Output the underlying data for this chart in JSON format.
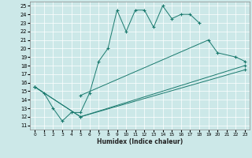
{
  "xlabel": "Humidex (Indice chaleur)",
  "ylabel": "",
  "bg_color": "#cce8e8",
  "grid_color": "#ffffff",
  "line_color": "#1a7a6e",
  "xlim": [
    -0.5,
    23.5
  ],
  "ylim": [
    10.5,
    25.5
  ],
  "xticks": [
    0,
    1,
    2,
    3,
    4,
    5,
    6,
    7,
    8,
    9,
    10,
    11,
    12,
    13,
    14,
    15,
    16,
    17,
    18,
    19,
    20,
    21,
    22,
    23
  ],
  "yticks": [
    11,
    12,
    13,
    14,
    15,
    16,
    17,
    18,
    19,
    20,
    21,
    22,
    23,
    24,
    25
  ],
  "line1_x": [
    0,
    1,
    2,
    3,
    4,
    5,
    6,
    7,
    8,
    9,
    10,
    11,
    12,
    13,
    14,
    15,
    16,
    17,
    18
  ],
  "line1_y": [
    15.5,
    14.8,
    13.0,
    11.5,
    12.5,
    12.5,
    14.8,
    18.5,
    20.0,
    24.5,
    22.0,
    24.5,
    24.5,
    22.5,
    25.0,
    23.5,
    24.0,
    24.0,
    23.0
  ],
  "line2_x": [
    5,
    19,
    20,
    22,
    23
  ],
  "line2_y": [
    14.5,
    21.0,
    19.5,
    19.0,
    18.5
  ],
  "line3_x": [
    0,
    5,
    23
  ],
  "line3_y": [
    15.5,
    12.0,
    18.0
  ],
  "line4_x": [
    0,
    5,
    23
  ],
  "line4_y": [
    15.5,
    12.0,
    17.5
  ]
}
